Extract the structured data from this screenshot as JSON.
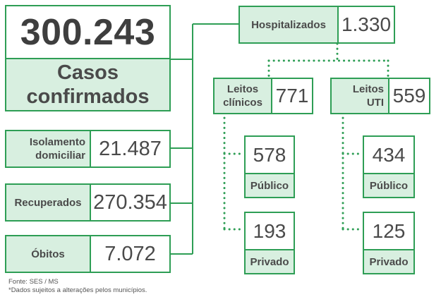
{
  "total": {
    "value": "300.243",
    "label_line1": "Casos",
    "label_line2": "confirmados"
  },
  "left_items": [
    {
      "label_line1": "Isolamento",
      "label_line2": "domiciliar",
      "value": "21.487"
    },
    {
      "label_line1": "Recuperados",
      "label_line2": "",
      "value": "270.354"
    },
    {
      "label_line1": "Óbitos",
      "label_line2": "",
      "value": "7.072"
    }
  ],
  "hospitalizados": {
    "label": "Hospitalizados",
    "value": "1.330"
  },
  "leitos_clinicos": {
    "label_line1": "Leitos",
    "label_line2": "clínicos",
    "value": "771",
    "publico": {
      "value": "578",
      "label": "Público"
    },
    "privado": {
      "value": "193",
      "label": "Privado"
    }
  },
  "leitos_uti": {
    "label_line1": "Leitos",
    "label_line2": "UTI",
    "value": "559",
    "publico": {
      "value": "434",
      "label": "Público"
    },
    "privado": {
      "value": "125",
      "label": "Privado"
    }
  },
  "footer": {
    "source": "Fonte: SES / MS",
    "note": "*Dados sujeitos a alterações pelos municípios."
  },
  "colors": {
    "border": "#2e9e55",
    "label_bg": "#d8efe0",
    "text": "#4a4a4a"
  }
}
